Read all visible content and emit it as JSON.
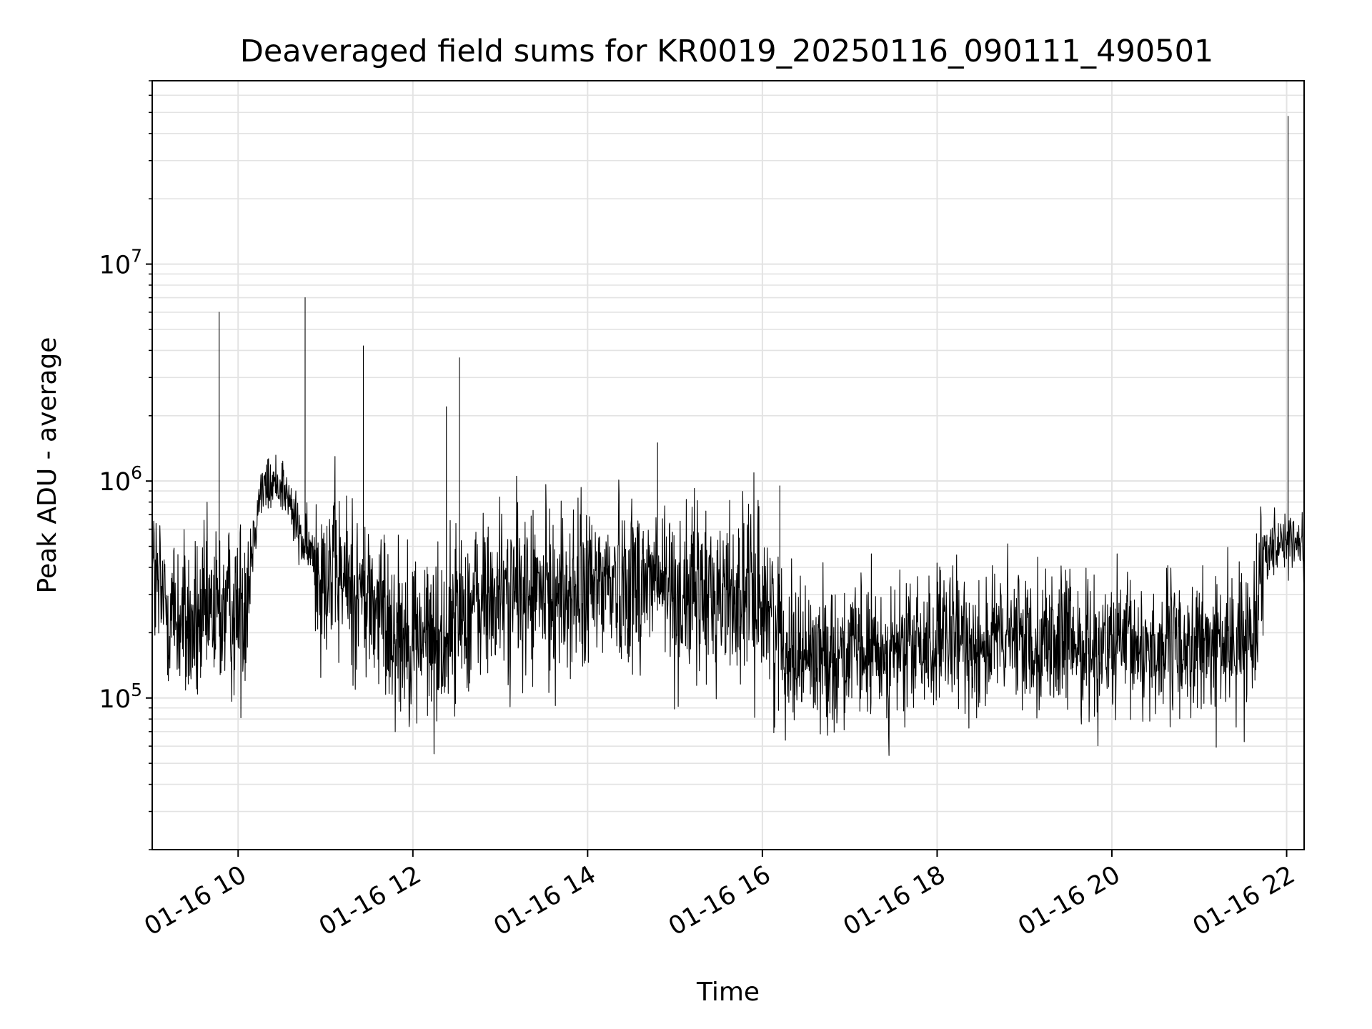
{
  "chart_data": {
    "type": "line",
    "title": "Deaveraged field sums for KR0019_20250116_090111_490501",
    "xlabel": "Time",
    "ylabel": "Peak ADU - average",
    "x_axis": {
      "kind": "datetime",
      "range": [
        "2025-01-16 09:01",
        "2025-01-16 22:12"
      ],
      "ticks": [
        {
          "at": "2025-01-16 10:00",
          "label": "01-16 10"
        },
        {
          "at": "2025-01-16 12:00",
          "label": "01-16 12"
        },
        {
          "at": "2025-01-16 14:00",
          "label": "01-16 14"
        },
        {
          "at": "2025-01-16 16:00",
          "label": "01-16 16"
        },
        {
          "at": "2025-01-16 18:00",
          "label": "01-16 18"
        },
        {
          "at": "2025-01-16 20:00",
          "label": "01-16 20"
        },
        {
          "at": "2025-01-16 22:00",
          "label": "01-16 22"
        }
      ]
    },
    "y_axis": {
      "scale": "log",
      "range": [
        20000,
        70000000
      ],
      "ticks": [
        {
          "value": 100000,
          "base": "10",
          "exp": "5"
        },
        {
          "value": 1000000,
          "base": "10",
          "exp": "6"
        },
        {
          "value": 10000000,
          "base": "10",
          "exp": "7"
        }
      ]
    },
    "grid": true,
    "legend": "none",
    "series_color": "#000000",
    "series": [
      {
        "x": [
          "2025-01-16 09:01",
          "2025-01-16 09:05",
          "2025-01-16 09:15",
          "2025-01-16 09:30",
          "2025-01-16 09:45",
          "2025-01-16 09:47",
          "2025-01-16 09:50",
          "2025-01-16 10:00",
          "2025-01-16 10:05",
          "2025-01-16 10:15",
          "2025-01-16 10:30",
          "2025-01-16 10:45",
          "2025-01-16 10:46",
          "2025-01-16 11:00",
          "2025-01-16 11:25",
          "2025-01-16 11:26",
          "2025-01-16 11:45",
          "2025-01-16 12:00",
          "2025-01-16 12:20",
          "2025-01-16 12:23",
          "2025-01-16 12:31",
          "2025-01-16 12:32",
          "2025-01-16 13:00",
          "2025-01-16 13:30",
          "2025-01-16 14:00",
          "2025-01-16 14:10",
          "2025-01-16 14:45",
          "2025-01-16 14:48",
          "2025-01-16 15:00",
          "2025-01-16 15:30",
          "2025-01-16 16:00",
          "2025-01-16 16:12",
          "2025-01-16 16:15",
          "2025-01-16 16:30",
          "2025-01-16 17:00",
          "2025-01-16 17:30",
          "2025-01-16 18:00",
          "2025-01-16 18:30",
          "2025-01-16 19:00",
          "2025-01-16 19:30",
          "2025-01-16 20:00",
          "2025-01-16 20:30",
          "2025-01-16 21:00",
          "2025-01-16 21:30",
          "2025-01-16 21:36",
          "2025-01-16 21:45",
          "2025-01-16 22:00",
          "2025-01-16 22:01",
          "2025-01-16 22:03",
          "2025-01-16 22:12"
        ],
        "y": [
          400000,
          300000,
          250000,
          200000,
          250000,
          6000000,
          250000,
          250000,
          300000,
          900000,
          1000000,
          500000,
          7000000,
          400000,
          300000,
          4200000,
          220000,
          200000,
          180000,
          2200000,
          250000,
          3700000,
          300000,
          300000,
          300000,
          350000,
          350000,
          1500000,
          300000,
          300000,
          300000,
          950000,
          180000,
          160000,
          160000,
          160000,
          180000,
          180000,
          190000,
          180000,
          170000,
          170000,
          170000,
          180000,
          200000,
          500000,
          550000,
          48000000,
          520000,
          500000
        ]
      }
    ]
  }
}
